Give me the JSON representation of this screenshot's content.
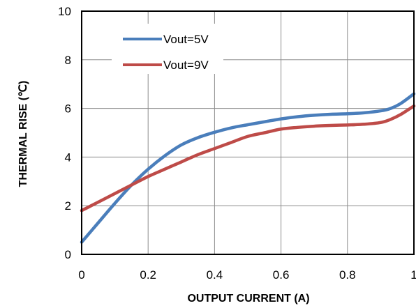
{
  "chart_data": {
    "type": "line",
    "xlabel": "OUTPUT  CURRENT  (A)",
    "ylabel": "THERMAL  RISE (℃)",
    "xlim": [
      0,
      1
    ],
    "ylim": [
      0,
      10
    ],
    "x_ticks": [
      "0",
      "0.2",
      "0.4",
      "0.6",
      "0.8",
      "1"
    ],
    "y_ticks": [
      "0",
      "2",
      "4",
      "6",
      "8",
      "10"
    ],
    "grid": true,
    "legend_position": "top-left",
    "series": [
      {
        "name": "Vout=5V",
        "color": "#4a7ebb",
        "x": [
          0,
          0.05,
          0.1,
          0.15,
          0.2,
          0.25,
          0.3,
          0.35,
          0.4,
          0.45,
          0.5,
          0.55,
          0.6,
          0.65,
          0.7,
          0.75,
          0.8,
          0.85,
          0.9,
          0.93,
          0.96,
          1.0
        ],
        "y": [
          0.5,
          1.3,
          2.1,
          2.85,
          3.5,
          4.05,
          4.5,
          4.8,
          5.02,
          5.2,
          5.33,
          5.45,
          5.57,
          5.66,
          5.72,
          5.76,
          5.78,
          5.82,
          5.9,
          6.0,
          6.2,
          6.6
        ]
      },
      {
        "name": "Vout=9V",
        "color": "#be4b48",
        "x": [
          0,
          0.05,
          0.1,
          0.15,
          0.2,
          0.25,
          0.3,
          0.35,
          0.4,
          0.45,
          0.5,
          0.55,
          0.6,
          0.65,
          0.7,
          0.75,
          0.8,
          0.85,
          0.9,
          0.93,
          0.96,
          1.0
        ],
        "y": [
          1.8,
          2.15,
          2.5,
          2.85,
          3.2,
          3.5,
          3.8,
          4.1,
          4.35,
          4.6,
          4.85,
          5.0,
          5.15,
          5.22,
          5.27,
          5.3,
          5.32,
          5.35,
          5.42,
          5.55,
          5.75,
          6.1
        ]
      }
    ]
  }
}
